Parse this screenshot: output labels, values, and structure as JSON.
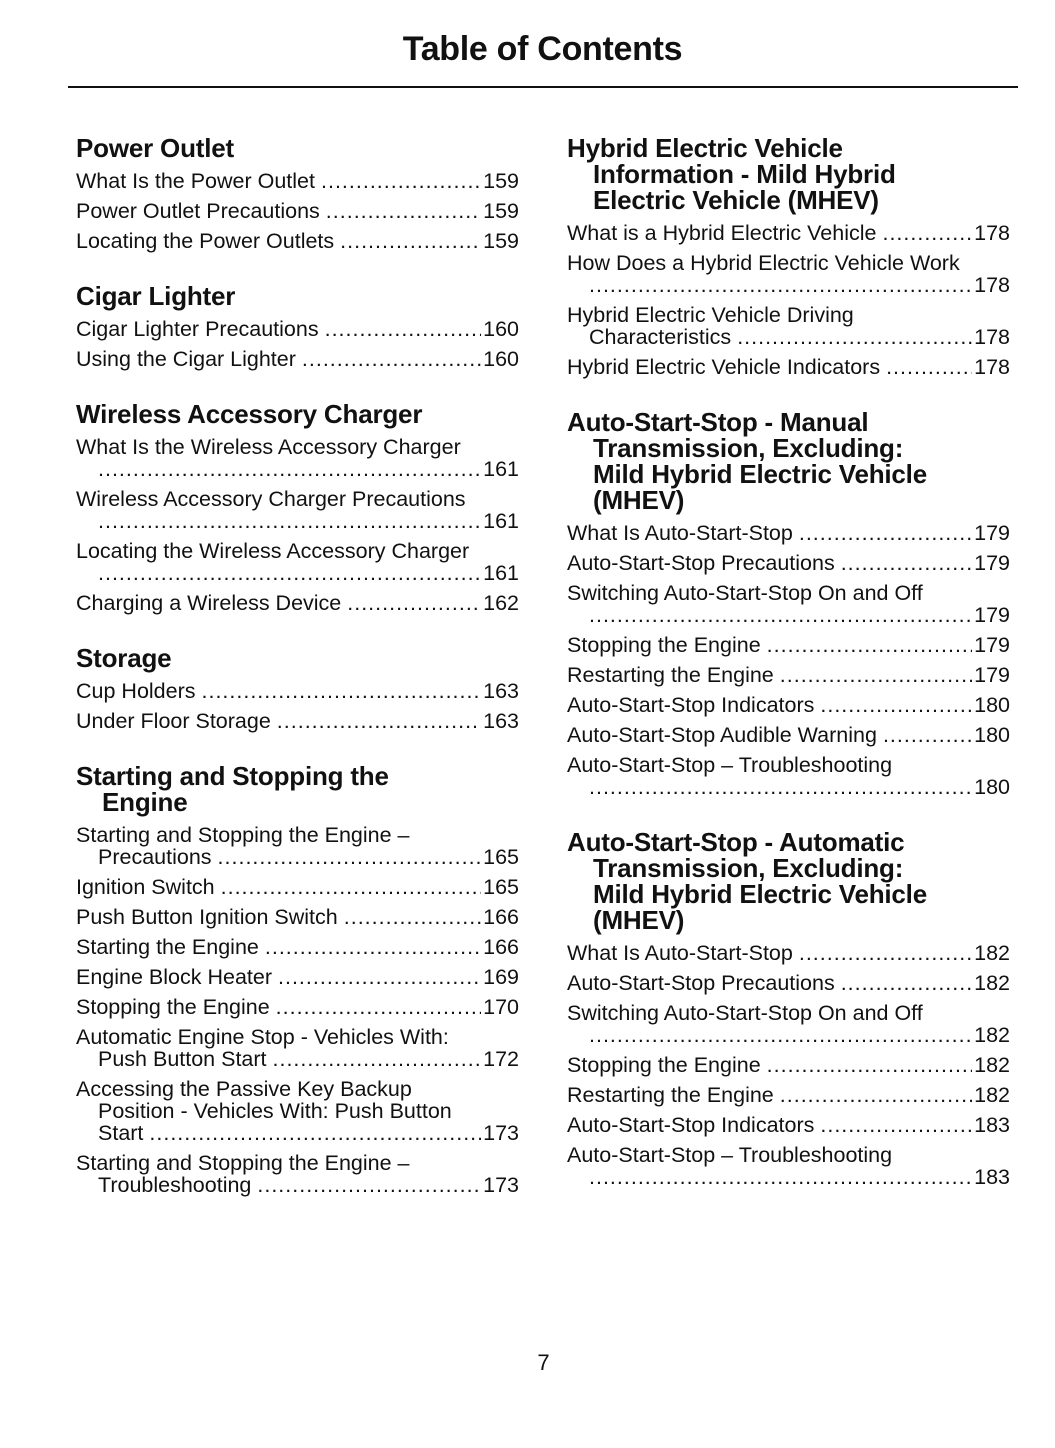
{
  "title": "Table of Contents",
  "page_number": "7",
  "columns": [
    {
      "sections": [
        {
          "heading": [
            "Power Outlet"
          ],
          "entries": [
            {
              "lines": [
                "What Is the Power Outlet"
              ],
              "page": "159"
            },
            {
              "lines": [
                "Power Outlet Precautions"
              ],
              "page": "159"
            },
            {
              "lines": [
                "Locating the Power Outlets"
              ],
              "page": "159"
            }
          ]
        },
        {
          "heading": [
            "Cigar Lighter"
          ],
          "entries": [
            {
              "lines": [
                "Cigar Lighter Precautions"
              ],
              "page": "160"
            },
            {
              "lines": [
                "Using the Cigar Lighter"
              ],
              "page": "160"
            }
          ]
        },
        {
          "heading": [
            "Wireless Accessory Charger"
          ],
          "entries": [
            {
              "lines": [
                "What Is the Wireless Accessory Charger",
                ""
              ],
              "page": "161"
            },
            {
              "lines": [
                "Wireless Accessory Charger Precautions",
                ""
              ],
              "page": "161"
            },
            {
              "lines": [
                "Locating the Wireless Accessory Charger",
                ""
              ],
              "page": "161"
            },
            {
              "lines": [
                "Charging a Wireless Device"
              ],
              "page": "162"
            }
          ]
        },
        {
          "heading": [
            "Storage"
          ],
          "entries": [
            {
              "lines": [
                "Cup Holders"
              ],
              "page": "163"
            },
            {
              "lines": [
                "Under Floor Storage"
              ],
              "page": "163"
            }
          ]
        },
        {
          "heading": [
            "Starting and Stopping the",
            "Engine"
          ],
          "entries": [
            {
              "lines": [
                "Starting and Stopping the Engine –",
                "Precautions"
              ],
              "page": "165"
            },
            {
              "lines": [
                "Ignition Switch"
              ],
              "page": "165"
            },
            {
              "lines": [
                "Push Button Ignition Switch"
              ],
              "page": "166"
            },
            {
              "lines": [
                "Starting the Engine"
              ],
              "page": "166"
            },
            {
              "lines": [
                "Engine Block Heater"
              ],
              "page": "169"
            },
            {
              "lines": [
                "Stopping the Engine"
              ],
              "page": "170"
            },
            {
              "lines": [
                "Automatic Engine Stop - Vehicles With:",
                "Push Button Start"
              ],
              "page": "172"
            },
            {
              "lines": [
                "Accessing the Passive Key Backup",
                "Position - Vehicles With: Push Button",
                "Start"
              ],
              "page": "173"
            },
            {
              "lines": [
                "Starting and Stopping the Engine –",
                "Troubleshooting"
              ],
              "page": "173"
            }
          ]
        }
      ]
    },
    {
      "sections": [
        {
          "heading": [
            "Hybrid Electric Vehicle",
            "Information - Mild Hybrid",
            "Electric Vehicle (MHEV)"
          ],
          "entries": [
            {
              "lines": [
                "What is a Hybrid Electric Vehicle"
              ],
              "page": "178"
            },
            {
              "lines": [
                "How Does a Hybrid Electric Vehicle Work",
                ""
              ],
              "page": "178"
            },
            {
              "lines": [
                "Hybrid Electric Vehicle Driving",
                "Characteristics"
              ],
              "page": "178"
            },
            {
              "lines": [
                "Hybrid Electric Vehicle Indicators"
              ],
              "page": "178"
            }
          ]
        },
        {
          "heading": [
            "Auto-Start-Stop - Manual",
            "Transmission, Excluding:",
            "Mild Hybrid Electric Vehicle",
            "(MHEV)"
          ],
          "entries": [
            {
              "lines": [
                "What Is Auto-Start-Stop"
              ],
              "page": "179"
            },
            {
              "lines": [
                "Auto-Start-Stop Precautions"
              ],
              "page": "179"
            },
            {
              "lines": [
                "Switching Auto-Start-Stop On and Off",
                ""
              ],
              "page": "179"
            },
            {
              "lines": [
                "Stopping the Engine"
              ],
              "page": "179"
            },
            {
              "lines": [
                "Restarting the Engine"
              ],
              "page": "179"
            },
            {
              "lines": [
                "Auto-Start-Stop Indicators"
              ],
              "page": "180"
            },
            {
              "lines": [
                "Auto-Start-Stop Audible Warning"
              ],
              "page": "180"
            },
            {
              "lines": [
                "Auto-Start-Stop – Troubleshooting",
                ""
              ],
              "page": "180"
            }
          ]
        },
        {
          "heading": [
            "Auto-Start-Stop - Automatic",
            "Transmission, Excluding:",
            "Mild Hybrid Electric Vehicle",
            "(MHEV)"
          ],
          "entries": [
            {
              "lines": [
                "What Is Auto-Start-Stop"
              ],
              "page": "182"
            },
            {
              "lines": [
                "Auto-Start-Stop Precautions"
              ],
              "page": "182"
            },
            {
              "lines": [
                "Switching Auto-Start-Stop On and Off",
                ""
              ],
              "page": "182"
            },
            {
              "lines": [
                "Stopping the Engine"
              ],
              "page": "182"
            },
            {
              "lines": [
                "Restarting the Engine"
              ],
              "page": "182"
            },
            {
              "lines": [
                "Auto-Start-Stop Indicators"
              ],
              "page": "183"
            },
            {
              "lines": [
                "Auto-Start-Stop – Troubleshooting",
                ""
              ],
              "page": "183"
            }
          ]
        }
      ]
    }
  ]
}
